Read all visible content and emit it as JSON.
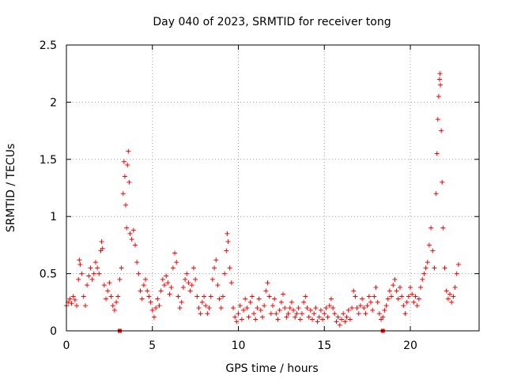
{
  "chart_data": {
    "type": "scatter",
    "title": "Day 040 of 2023, SRMTID for receiver tong",
    "xlabel": "GPS time / hours",
    "ylabel": "SRMTID / TECUs",
    "xlim": [
      0,
      24
    ],
    "ylim": [
      0,
      2.5
    ],
    "x_ticks": [
      0,
      5,
      10,
      15,
      20
    ],
    "x_tick_labels": [
      "0",
      "5",
      "10",
      "15",
      "20"
    ],
    "y_ticks": [
      0,
      0.5,
      1,
      1.5,
      2,
      2.5
    ],
    "y_tick_labels": [
      "0",
      "0.5",
      "1",
      "1.5",
      "2",
      "2.5"
    ],
    "grid": true,
    "marker": "plus",
    "color": "#ff0000",
    "series": [
      {
        "name": "SRMTID",
        "points": [
          [
            0.0,
            0.22
          ],
          [
            0.1,
            0.25
          ],
          [
            0.2,
            0.28
          ],
          [
            0.3,
            0.24
          ],
          [
            0.4,
            0.3
          ],
          [
            0.5,
            0.27
          ],
          [
            0.6,
            0.22
          ],
          [
            0.7,
            0.45
          ],
          [
            0.75,
            0.62
          ],
          [
            0.8,
            0.58
          ],
          [
            0.9,
            0.5
          ],
          [
            1.0,
            0.3
          ],
          [
            1.1,
            0.22
          ],
          [
            1.2,
            0.4
          ],
          [
            1.3,
            0.48
          ],
          [
            1.4,
            0.55
          ],
          [
            1.5,
            0.45
          ],
          [
            1.6,
            0.5
          ],
          [
            1.7,
            0.6
          ],
          [
            1.8,
            0.55
          ],
          [
            1.9,
            0.5
          ],
          [
            2.0,
            0.7
          ],
          [
            2.05,
            0.78
          ],
          [
            2.1,
            0.72
          ],
          [
            2.2,
            0.4
          ],
          [
            2.3,
            0.28
          ],
          [
            2.4,
            0.35
          ],
          [
            2.5,
            0.42
          ],
          [
            2.6,
            0.3
          ],
          [
            2.7,
            0.22
          ],
          [
            2.8,
            0.18
          ],
          [
            2.9,
            0.25
          ],
          [
            3.0,
            0.3
          ],
          [
            3.1,
            0.45
          ],
          [
            3.2,
            0.55
          ],
          [
            3.3,
            1.2
          ],
          [
            3.35,
            1.48
          ],
          [
            3.4,
            1.35
          ],
          [
            3.45,
            1.1
          ],
          [
            3.5,
            0.9
          ],
          [
            3.55,
            1.45
          ],
          [
            3.6,
            1.57
          ],
          [
            3.65,
            1.3
          ],
          [
            3.7,
            0.85
          ],
          [
            3.8,
            0.8
          ],
          [
            3.9,
            0.88
          ],
          [
            4.0,
            0.75
          ],
          [
            4.1,
            0.6
          ],
          [
            4.2,
            0.5
          ],
          [
            4.3,
            0.35
          ],
          [
            4.4,
            0.28
          ],
          [
            4.5,
            0.4
          ],
          [
            4.6,
            0.45
          ],
          [
            4.7,
            0.35
          ],
          [
            4.8,
            0.3
          ],
          [
            4.9,
            0.25
          ],
          [
            5.0,
            0.18
          ],
          [
            5.1,
            0.12
          ],
          [
            5.2,
            0.2
          ],
          [
            5.3,
            0.28
          ],
          [
            5.4,
            0.22
          ],
          [
            5.5,
            0.35
          ],
          [
            5.6,
            0.45
          ],
          [
            5.7,
            0.4
          ],
          [
            5.8,
            0.48
          ],
          [
            5.9,
            0.42
          ],
          [
            6.0,
            0.32
          ],
          [
            6.1,
            0.38
          ],
          [
            6.2,
            0.55
          ],
          [
            6.3,
            0.68
          ],
          [
            6.4,
            0.6
          ],
          [
            6.5,
            0.3
          ],
          [
            6.6,
            0.2
          ],
          [
            6.7,
            0.25
          ],
          [
            6.8,
            0.38
          ],
          [
            6.9,
            0.45
          ],
          [
            7.0,
            0.5
          ],
          [
            7.1,
            0.42
          ],
          [
            7.2,
            0.35
          ],
          [
            7.3,
            0.4
          ],
          [
            7.4,
            0.55
          ],
          [
            7.5,
            0.45
          ],
          [
            7.6,
            0.3
          ],
          [
            7.7,
            0.2
          ],
          [
            7.8,
            0.15
          ],
          [
            7.9,
            0.25
          ],
          [
            8.0,
            0.3
          ],
          [
            8.1,
            0.22
          ],
          [
            8.2,
            0.15
          ],
          [
            8.3,
            0.2
          ],
          [
            8.4,
            0.3
          ],
          [
            8.5,
            0.45
          ],
          [
            8.6,
            0.55
          ],
          [
            8.7,
            0.62
          ],
          [
            8.8,
            0.4
          ],
          [
            8.9,
            0.28
          ],
          [
            9.0,
            0.2
          ],
          [
            9.1,
            0.3
          ],
          [
            9.2,
            0.5
          ],
          [
            9.3,
            0.7
          ],
          [
            9.35,
            0.85
          ],
          [
            9.4,
            0.78
          ],
          [
            9.5,
            0.55
          ],
          [
            9.6,
            0.42
          ],
          [
            9.7,
            0.2
          ],
          [
            9.8,
            0.12
          ],
          [
            9.9,
            0.08
          ],
          [
            10.0,
            0.15
          ],
          [
            10.1,
            0.22
          ],
          [
            10.2,
            0.1
          ],
          [
            10.3,
            0.18
          ],
          [
            10.4,
            0.28
          ],
          [
            10.5,
            0.2
          ],
          [
            10.6,
            0.12
          ],
          [
            10.7,
            0.25
          ],
          [
            10.8,
            0.3
          ],
          [
            10.9,
            0.15
          ],
          [
            11.0,
            0.1
          ],
          [
            11.1,
            0.2
          ],
          [
            11.2,
            0.28
          ],
          [
            11.3,
            0.18
          ],
          [
            11.4,
            0.12
          ],
          [
            11.5,
            0.22
          ],
          [
            11.6,
            0.35
          ],
          [
            11.7,
            0.42
          ],
          [
            11.8,
            0.3
          ],
          [
            11.9,
            0.15
          ],
          [
            12.0,
            0.22
          ],
          [
            12.1,
            0.28
          ],
          [
            12.2,
            0.15
          ],
          [
            12.3,
            0.1
          ],
          [
            12.4,
            0.18
          ],
          [
            12.5,
            0.25
          ],
          [
            12.6,
            0.32
          ],
          [
            12.7,
            0.2
          ],
          [
            12.8,
            0.12
          ],
          [
            12.9,
            0.15
          ],
          [
            13.0,
            0.2
          ],
          [
            13.1,
            0.25
          ],
          [
            13.2,
            0.18
          ],
          [
            13.3,
            0.12
          ],
          [
            13.4,
            0.15
          ],
          [
            13.5,
            0.2
          ],
          [
            13.6,
            0.1
          ],
          [
            13.7,
            0.15
          ],
          [
            13.8,
            0.25
          ],
          [
            13.9,
            0.3
          ],
          [
            14.0,
            0.2
          ],
          [
            14.1,
            0.12
          ],
          [
            14.2,
            0.18
          ],
          [
            14.3,
            0.1
          ],
          [
            14.4,
            0.15
          ],
          [
            14.5,
            0.2
          ],
          [
            14.6,
            0.08
          ],
          [
            14.7,
            0.12
          ],
          [
            14.8,
            0.18
          ],
          [
            14.9,
            0.1
          ],
          [
            15.0,
            0.15
          ],
          [
            15.1,
            0.2
          ],
          [
            15.2,
            0.12
          ],
          [
            15.3,
            0.22
          ],
          [
            15.4,
            0.28
          ],
          [
            15.5,
            0.2
          ],
          [
            15.6,
            0.15
          ],
          [
            15.7,
            0.08
          ],
          [
            15.8,
            0.12
          ],
          [
            15.9,
            0.05
          ],
          [
            16.0,
            0.1
          ],
          [
            16.1,
            0.15
          ],
          [
            16.2,
            0.08
          ],
          [
            16.3,
            0.12
          ],
          [
            16.4,
            0.18
          ],
          [
            16.5,
            0.1
          ],
          [
            16.6,
            0.2
          ],
          [
            16.7,
            0.35
          ],
          [
            16.8,
            0.3
          ],
          [
            16.9,
            0.2
          ],
          [
            17.0,
            0.15
          ],
          [
            17.1,
            0.22
          ],
          [
            17.2,
            0.28
          ],
          [
            17.3,
            0.2
          ],
          [
            17.4,
            0.15
          ],
          [
            17.5,
            0.22
          ],
          [
            17.6,
            0.3
          ],
          [
            17.7,
            0.25
          ],
          [
            17.8,
            0.18
          ],
          [
            17.9,
            0.3
          ],
          [
            18.0,
            0.38
          ],
          [
            18.1,
            0.25
          ],
          [
            18.2,
            0.15
          ],
          [
            18.3,
            0.1
          ],
          [
            18.4,
            0.12
          ],
          [
            18.5,
            0.18
          ],
          [
            18.6,
            0.22
          ],
          [
            18.7,
            0.28
          ],
          [
            18.8,
            0.35
          ],
          [
            18.9,
            0.3
          ],
          [
            19.0,
            0.4
          ],
          [
            19.1,
            0.45
          ],
          [
            19.2,
            0.35
          ],
          [
            19.3,
            0.28
          ],
          [
            19.4,
            0.38
          ],
          [
            19.5,
            0.3
          ],
          [
            19.6,
            0.22
          ],
          [
            19.7,
            0.15
          ],
          [
            19.8,
            0.25
          ],
          [
            19.9,
            0.3
          ],
          [
            20.0,
            0.38
          ],
          [
            20.1,
            0.32
          ],
          [
            20.2,
            0.25
          ],
          [
            20.3,
            0.3
          ],
          [
            20.4,
            0.22
          ],
          [
            20.5,
            0.28
          ],
          [
            20.6,
            0.38
          ],
          [
            20.7,
            0.45
          ],
          [
            20.8,
            0.5
          ],
          [
            20.9,
            0.55
          ],
          [
            21.0,
            0.6
          ],
          [
            21.1,
            0.75
          ],
          [
            21.2,
            0.9
          ],
          [
            21.3,
            0.7
          ],
          [
            21.4,
            0.55
          ],
          [
            21.5,
            1.2
          ],
          [
            21.55,
            1.55
          ],
          [
            21.6,
            1.85
          ],
          [
            21.65,
            2.05
          ],
          [
            21.7,
            2.2
          ],
          [
            21.72,
            2.25
          ],
          [
            21.75,
            2.15
          ],
          [
            21.8,
            1.75
          ],
          [
            21.85,
            1.3
          ],
          [
            21.9,
            0.9
          ],
          [
            22.0,
            0.55
          ],
          [
            22.1,
            0.35
          ],
          [
            22.2,
            0.28
          ],
          [
            22.3,
            0.32
          ],
          [
            22.4,
            0.25
          ],
          [
            22.5,
            0.3
          ],
          [
            22.6,
            0.38
          ],
          [
            22.7,
            0.5
          ],
          [
            22.8,
            0.58
          ]
        ]
      }
    ],
    "baseline_markers_x": [
      3.1,
      18.4
    ]
  }
}
